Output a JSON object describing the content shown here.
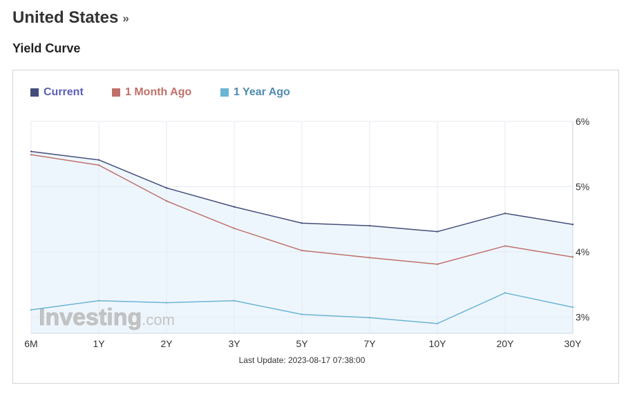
{
  "header": {
    "title": "United States",
    "arrow": "»",
    "subtitle": "Yield Curve"
  },
  "legend": [
    {
      "label": "Current",
      "color": "#434d7a",
      "text_color": "#5a5fb5"
    },
    {
      "label": "1 Month Ago",
      "color": "#c0706a",
      "text_color": "#c0706a"
    },
    {
      "label": "1 Year Ago",
      "color": "#6ab4d4",
      "text_color": "#4e8bb0"
    }
  ],
  "watermark": {
    "brand": "Investing",
    "suffix": ".com"
  },
  "footer": {
    "last_update": "Last Update: 2023-08-17 07:38:00"
  },
  "chart_data": {
    "type": "line",
    "categories": [
      "6M",
      "1Y",
      "2Y",
      "3Y",
      "5Y",
      "7Y",
      "10Y",
      "20Y",
      "30Y"
    ],
    "y_ticks": [
      "6%",
      "5%",
      "4%",
      "3%"
    ],
    "ylim": [
      2.75,
      6.0
    ],
    "grid": true,
    "y_axis_side": "right",
    "legend_position": "top-left",
    "series": [
      {
        "name": "Current",
        "color": "#434d7a",
        "filled": true,
        "values": [
          5.54,
          5.41,
          4.98,
          4.69,
          4.44,
          4.4,
          4.31,
          4.59,
          4.42
        ]
      },
      {
        "name": "1 Month Ago",
        "color": "#c0706a",
        "values": [
          5.49,
          5.33,
          4.78,
          4.36,
          4.02,
          3.91,
          3.81,
          4.09,
          3.92
        ]
      },
      {
        "name": "1 Year Ago",
        "color": "#6ab4d4",
        "values": [
          3.11,
          3.25,
          3.22,
          3.25,
          3.04,
          2.99,
          2.9,
          3.37,
          3.15
        ]
      }
    ]
  }
}
